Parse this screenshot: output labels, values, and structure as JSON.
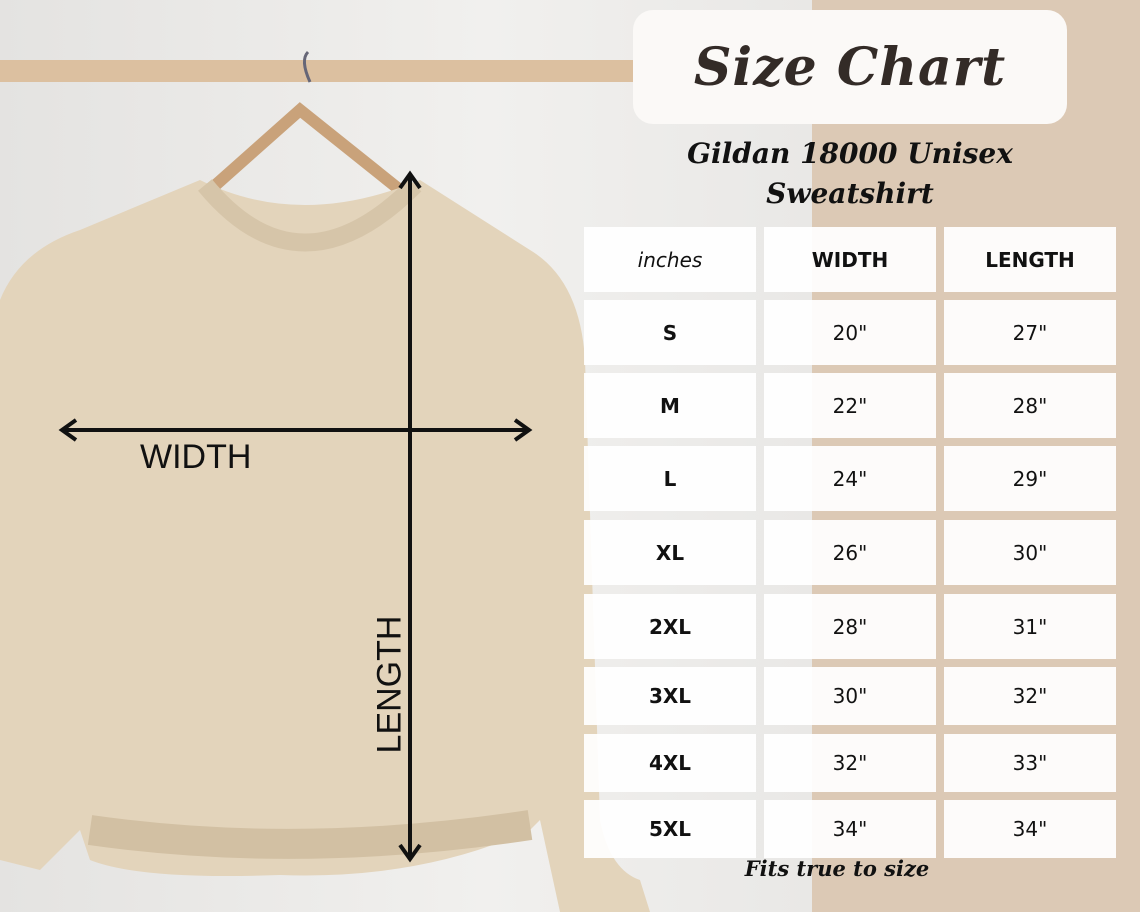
{
  "title": "Size Chart",
  "subtitle_line1": "Gildan 18000 Unisex",
  "subtitle_line2": "Sweatshirt",
  "photo_labels": {
    "width": "WIDTH",
    "length": "LENGTH"
  },
  "table": {
    "headers": [
      "inches",
      "WIDTH",
      "LENGTH"
    ],
    "rows": [
      [
        "S",
        "20\"",
        "27\""
      ],
      [
        "M",
        "22\"",
        "28\""
      ],
      [
        "L",
        "24\"",
        "29\""
      ],
      [
        "XL",
        "26\"",
        "30\""
      ],
      [
        "2XL",
        "28\"",
        "31\""
      ],
      [
        "3XL",
        "30\"",
        "32\""
      ],
      [
        "4XL",
        "32\"",
        "33\""
      ],
      [
        "5XL",
        "34\"",
        "34\""
      ]
    ]
  },
  "footer": "Fits true to size",
  "colors": {
    "background_beige": "#dcc9b5",
    "sweatshirt": "#e3d4bb",
    "title_text": "#332b27"
  }
}
